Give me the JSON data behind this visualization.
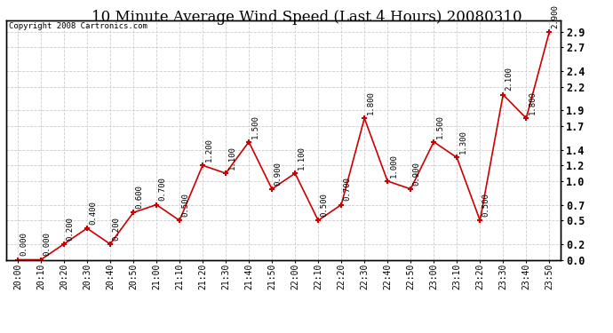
{
  "title": "10 Minute Average Wind Speed (Last 4 Hours) 20080310",
  "copyright": "Copyright 2008 Cartronics.com",
  "x_labels": [
    "20:00",
    "20:10",
    "20:20",
    "20:30",
    "20:40",
    "20:50",
    "21:00",
    "21:10",
    "21:20",
    "21:30",
    "21:40",
    "21:50",
    "22:00",
    "22:10",
    "22:20",
    "22:30",
    "22:40",
    "22:50",
    "23:00",
    "23:10",
    "23:20",
    "23:30",
    "23:40",
    "23:50"
  ],
  "y_values": [
    0.0,
    0.0,
    0.2,
    0.4,
    0.2,
    0.6,
    0.7,
    0.5,
    1.2,
    1.1,
    1.5,
    0.9,
    1.1,
    0.5,
    0.7,
    1.8,
    1.0,
    0.9,
    1.5,
    1.3,
    0.5,
    2.1,
    1.8,
    2.9
  ],
  "data_labels": [
    "0.000",
    "0.000",
    "0.200",
    "0.400",
    "0.200",
    "0.600",
    "0.700",
    "0.500",
    "1.200",
    "1.100",
    "1.500",
    "0.900",
    "1.100",
    "0.500",
    "0.700",
    "1.800",
    "1.000",
    "0.900",
    "1.500",
    "1.300",
    "0.500",
    "2.100",
    "1.800",
    "2.900"
  ],
  "line_color": "#cc0000",
  "marker_color": "#cc0000",
  "background_color": "#ffffff",
  "grid_color": "#cccccc",
  "ylim": [
    0.0,
    3.05
  ],
  "yticks": [
    0.0,
    0.2,
    0.5,
    0.7,
    1.0,
    1.2,
    1.4,
    1.7,
    1.9,
    2.2,
    2.4,
    2.7,
    2.9
  ],
  "title_fontsize": 12,
  "label_fontsize": 6.5,
  "copyright_fontsize": 6.5,
  "tick_fontsize": 8.5
}
